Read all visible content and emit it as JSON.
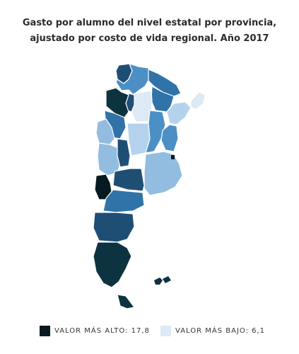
{
  "title": {
    "line1": "Gasto por alumno del nivel estatal por provincia,",
    "line2": "ajustado por costo de vida regional. Año 2017"
  },
  "legend": {
    "high_label": "VALOR MÁS ALTO: 17,8",
    "high_color": "#061a20",
    "low_label": "VALOR MÁS BAJO: 6,1",
    "low_color": "#dde9f5"
  },
  "palette": {
    "very_dark": "#0d3340",
    "darkest": "#061a20",
    "dark": "#1f4e75",
    "medium_dark": "#2f73a8",
    "medium": "#4c8fc4",
    "light": "#92bde0",
    "lighter": "#b4d2ec",
    "lightest": "#dde9f5"
  }
}
